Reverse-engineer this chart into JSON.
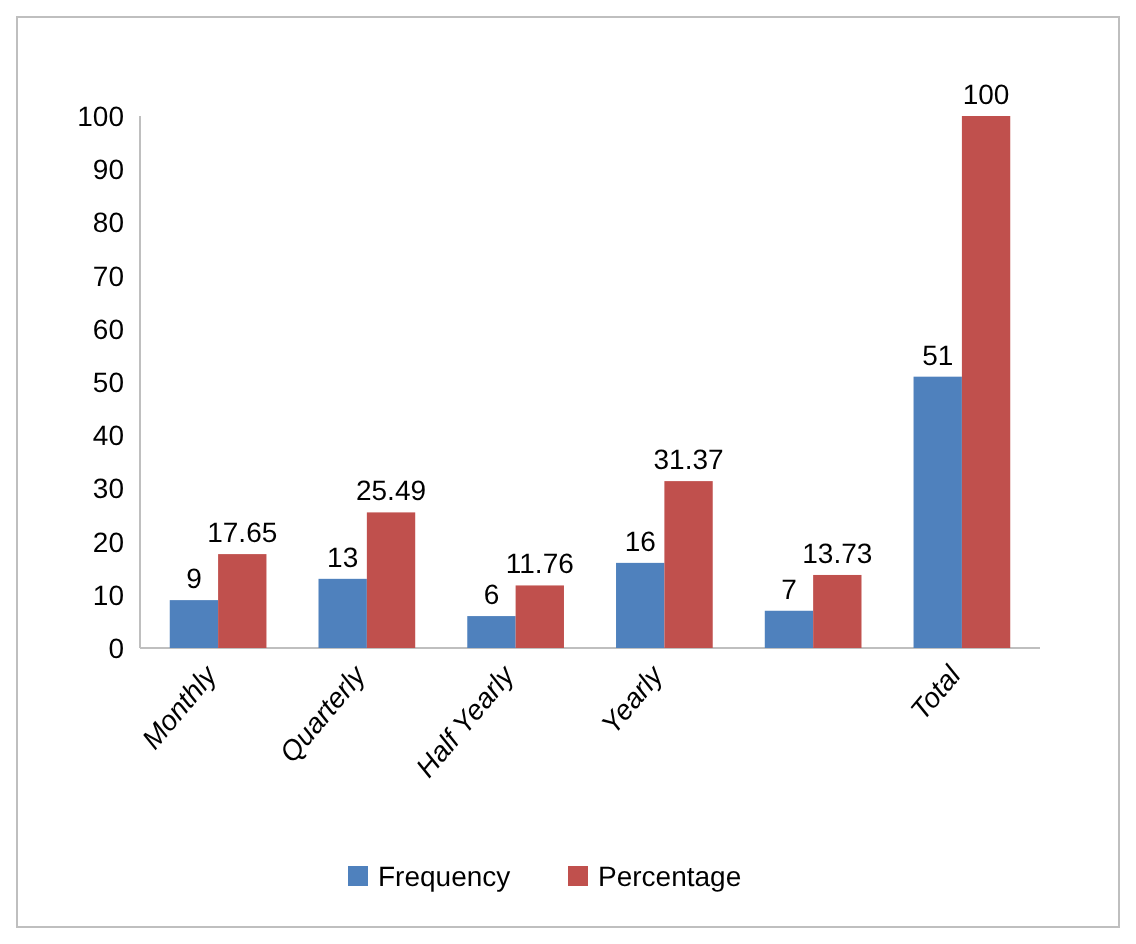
{
  "chart_data": {
    "type": "bar",
    "categories": [
      "Monthly",
      "Quarterly",
      "Half Yearly",
      "Yearly",
      null,
      "Total"
    ],
    "series": [
      {
        "name": "Frequency",
        "color": "#4f81bd",
        "values": [
          9,
          13,
          6,
          16,
          7,
          51
        ]
      },
      {
        "name": "Percentage",
        "color": "#c0504d",
        "values": [
          17.65,
          25.49,
          11.76,
          31.37,
          13.73,
          100
        ]
      }
    ],
    "ylim": [
      0,
      100
    ],
    "yticks": [
      0,
      10,
      20,
      30,
      40,
      50,
      60,
      70,
      80,
      90,
      100
    ],
    "data_labels": true,
    "legend": "bottom",
    "grid": false
  }
}
